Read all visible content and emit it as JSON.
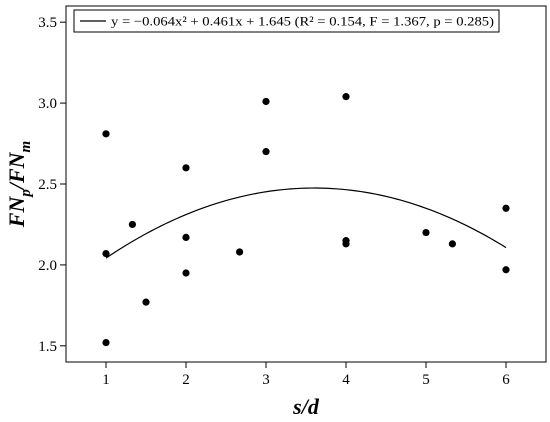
{
  "chart_data": {
    "type": "scatter",
    "xlabel": "s/d",
    "ylabel": "FNp/FNm",
    "xlim": [
      0.5,
      6.5
    ],
    "ylim": [
      1.4,
      3.6
    ],
    "x_ticks": [
      "1",
      "2",
      "3",
      "4",
      "5",
      "6"
    ],
    "y_ticks": [
      "1.5",
      "2.0",
      "2.5",
      "3.0",
      "3.5"
    ],
    "legend_label": "y = −0.064x² + 0.461x + 1.645 (R² = 0.154, F = 1.367, p = 0.285)",
    "legend_position": "top",
    "grid": false,
    "points": [
      {
        "x": 1,
        "y": 2.81
      },
      {
        "x": 1,
        "y": 2.07
      },
      {
        "x": 1,
        "y": 1.52
      },
      {
        "x": 1.33,
        "y": 2.25
      },
      {
        "x": 1.5,
        "y": 1.77
      },
      {
        "x": 2,
        "y": 2.6
      },
      {
        "x": 2,
        "y": 2.17
      },
      {
        "x": 2,
        "y": 1.95
      },
      {
        "x": 2.67,
        "y": 2.08
      },
      {
        "x": 3,
        "y": 3.01
      },
      {
        "x": 3,
        "y": 2.7
      },
      {
        "x": 4,
        "y": 3.04
      },
      {
        "x": 4,
        "y": 2.15
      },
      {
        "x": 4,
        "y": 2.13
      },
      {
        "x": 5,
        "y": 2.2
      },
      {
        "x": 5.33,
        "y": 2.13
      },
      {
        "x": 6,
        "y": 2.35
      },
      {
        "x": 6,
        "y": 1.97
      }
    ],
    "fit": {
      "type": "quadratic",
      "a": -0.064,
      "b": 0.461,
      "c": 1.645,
      "x_range": [
        1,
        6
      ]
    }
  }
}
